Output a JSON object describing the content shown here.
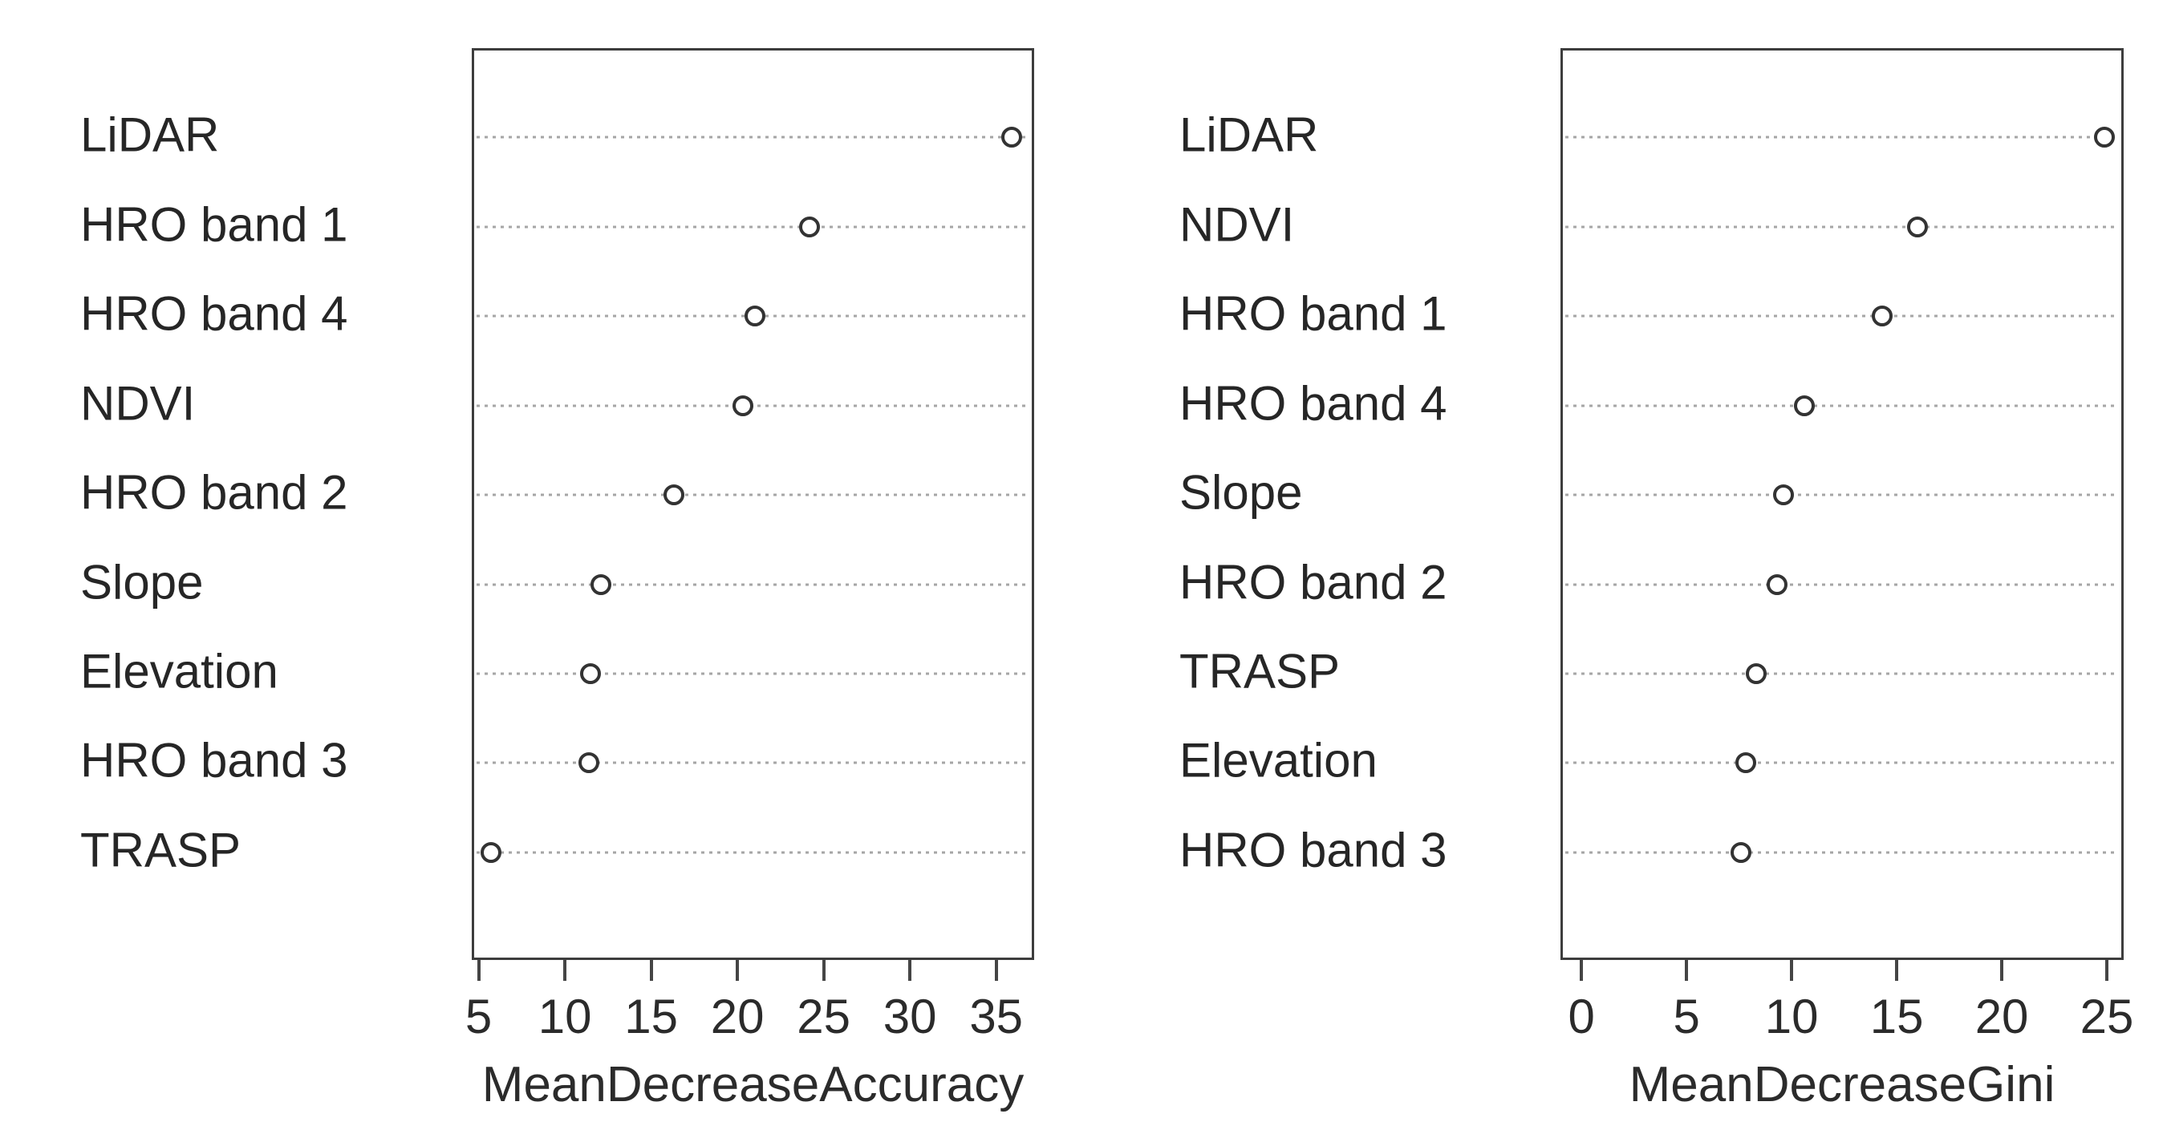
{
  "chart_data": [
    {
      "type": "scatter",
      "title": "",
      "xlabel": "MeanDecreaseAccuracy",
      "ylabel": "",
      "categories": [
        "LiDAR",
        "HRO band 1",
        "HRO band 4",
        "NDVI",
        "HRO band 2",
        "Slope",
        "Elevation",
        "HRO band 3",
        "TRASP"
      ],
      "values": [
        35.9,
        24.2,
        21.0,
        20.3,
        16.3,
        12.1,
        11.5,
        11.4,
        5.7
      ],
      "xticks": [
        5,
        10,
        15,
        20,
        25,
        30,
        35
      ],
      "xlim": [
        4.6,
        37.2
      ],
      "grid": "dotted-horizontal-per-category",
      "legend": "none",
      "marker": "open-circle"
    },
    {
      "type": "scatter",
      "title": "",
      "xlabel": "MeanDecreaseGini",
      "ylabel": "",
      "categories": [
        "LiDAR",
        "NDVI",
        "HRO band 1",
        "HRO band 4",
        "Slope",
        "HRO band 2",
        "TRASP",
        "Elevation",
        "HRO band 3"
      ],
      "values": [
        24.9,
        16.0,
        14.3,
        10.6,
        9.6,
        9.3,
        8.3,
        7.8,
        7.6
      ],
      "xticks": [
        0,
        5,
        10,
        15,
        20,
        25
      ],
      "xlim": [
        -1.0,
        25.8
      ],
      "grid": "dotted-horizontal-per-category",
      "legend": "none",
      "marker": "open-circle"
    }
  ],
  "colors": {
    "background": "#ffffff",
    "box_border": "#3d3d3d",
    "marker_stroke": "#333333",
    "grid_dotted": "#a6a6a6",
    "text": "#262626"
  }
}
